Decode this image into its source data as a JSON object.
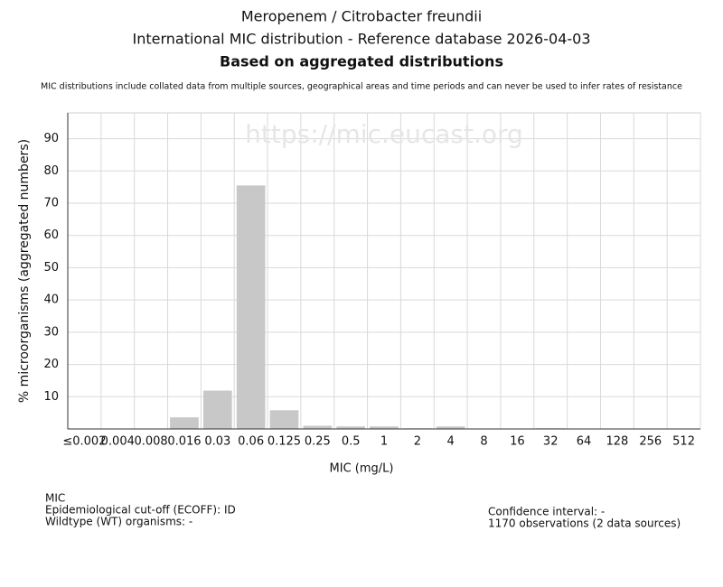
{
  "chart_data": {
    "type": "bar",
    "title_lines": [
      "Meropenem / Citrobacter freundii",
      "International MIC distribution - Reference database 2026-04-03",
      "Based on aggregated distributions"
    ],
    "note": "MIC distributions include collated data from multiple sources, geographical areas and time periods and can never be used to infer rates of resistance",
    "watermark": "https://mic.eucast.org",
    "x_label": "MIC (mg/L)",
    "y_label": "% microorganisms (aggregated numbers)",
    "categories": [
      "≤0.002",
      "0.004",
      "0.008",
      "0.016",
      "0.03",
      "0.06",
      "0.125",
      "0.25",
      "0.5",
      "1",
      "2",
      "4",
      "8",
      "16",
      "32",
      "64",
      "128",
      "256",
      "512"
    ],
    "values": [
      0,
      0,
      0,
      3.6,
      11.9,
      75.5,
      5.8,
      1.0,
      0.8,
      0.8,
      0.2,
      0.8,
      0,
      0,
      0.2,
      0,
      0,
      0,
      0
    ],
    "color": "#c8c8c8",
    "ylim": [
      0,
      98
    ],
    "yticks": [
      10,
      20,
      30,
      40,
      50,
      60,
      70,
      80,
      90
    ],
    "grid": true,
    "footer_left": [
      "MIC",
      "Epidemiological cut-off (ECOFF): ID",
      "Wildtype (WT) organisms:  -"
    ],
    "footer_right": [
      "Confidence interval: -",
      "1170 observations (2 data sources)"
    ]
  }
}
